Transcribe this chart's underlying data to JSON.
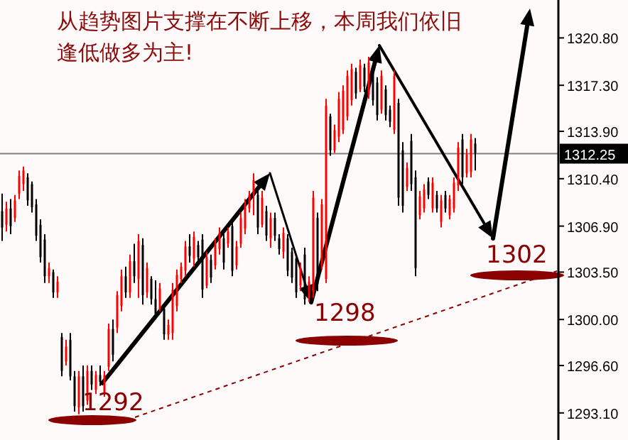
{
  "chart_data": {
    "type": "candlestick",
    "title": "从趋势图片支撑在不断上移，本周我们依旧逢低做多为主!",
    "annotations": [
      "1292",
      "1298",
      "1302"
    ],
    "categories": [
      null,
      null,
      null,
      null,
      null,
      null,
      null,
      null,
      null,
      null,
      null,
      null,
      null,
      null,
      null,
      null,
      null,
      null,
      null,
      null,
      null,
      null,
      null,
      null,
      null,
      null,
      null,
      null,
      null,
      null,
      null,
      null,
      null,
      null,
      null,
      null,
      null,
      null,
      null,
      null,
      null,
      null,
      null,
      null,
      null,
      null,
      null,
      null,
      null,
      null,
      null,
      null,
      null,
      null,
      null,
      null,
      null,
      null,
      null,
      null,
      null,
      null,
      null,
      null,
      null,
      null,
      null,
      null,
      null,
      null,
      null,
      null,
      null,
      null,
      null,
      null,
      null,
      null,
      null,
      null,
      null,
      null,
      null,
      null,
      null,
      null,
      null,
      null,
      null,
      null,
      null,
      null,
      null,
      null,
      null,
      null,
      null,
      null,
      null,
      null,
      null,
      null,
      null,
      null,
      null,
      null,
      null,
      null,
      null,
      null,
      null,
      null,
      null,
      null,
      null,
      null,
      null,
      null,
      null,
      null,
      null,
      null,
      null,
      null,
      null,
      null,
      null,
      null,
      null,
      null,
      null
    ],
    "ohlc": [
      [
        1308.0,
        1309.3,
        1305.8,
        1306.8
      ],
      [
        1307.0,
        1308.7,
        1306.5,
        1308.2
      ],
      [
        1308.2,
        1308.9,
        1306.3,
        1306.9
      ],
      [
        1307.5,
        1309.2,
        1307.2,
        1308.8
      ],
      [
        1309.3,
        1311.0,
        1308.9,
        1310.6
      ],
      [
        1310.0,
        1311.3,
        1309.5,
        1311.0
      ],
      [
        1310.5,
        1310.8,
        1308.4,
        1308.8
      ],
      [
        1310.0,
        1310.2,
        1307.9,
        1308.3
      ],
      [
        1308.5,
        1308.9,
        1305.8,
        1306.2
      ],
      [
        1307.0,
        1307.4,
        1304.2,
        1304.6
      ],
      [
        1305.9,
        1306.3,
        1302.7,
        1303.2
      ],
      [
        1303.2,
        1304.2,
        1302.7,
        1303.8
      ],
      [
        1303.5,
        1303.7,
        1301.6,
        1302.0
      ],
      [
        1302.0,
        1303.2,
        1301.6,
        1302.8
      ],
      [
        1298.7,
        1299.0,
        1295.8,
        1296.2
      ],
      [
        1296.9,
        1298.5,
        1296.6,
        1298.0
      ],
      [
        1298.5,
        1299.0,
        1295.5,
        1295.8
      ],
      [
        1295.8,
        1296.2,
        1293.2,
        1293.6
      ],
      [
        1293.5,
        1296.2,
        1293.0,
        1295.8
      ],
      [
        1295.8,
        1296.6,
        1293.2,
        1293.6
      ],
      [
        1294.0,
        1296.6,
        1293.7,
        1296.2
      ],
      [
        1296.2,
        1296.6,
        1294.8,
        1295.2
      ],
      [
        1294.8,
        1296.2,
        1294.5,
        1295.9
      ],
      [
        1295.9,
        1296.6,
        1295.1,
        1295.4
      ],
      [
        1294.6,
        1296.2,
        1294.3,
        1295.9
      ],
      [
        1296.5,
        1299.7,
        1296.2,
        1299.3
      ],
      [
        1299.3,
        1300.0,
        1296.9,
        1297.4
      ],
      [
        1299.4,
        1302.1,
        1299.0,
        1301.8
      ],
      [
        1301.0,
        1303.7,
        1300.6,
        1303.2
      ],
      [
        1303.2,
        1303.9,
        1301.6,
        1302.0
      ],
      [
        1302.0,
        1304.8,
        1301.6,
        1304.3
      ],
      [
        1304.3,
        1305.6,
        1302.7,
        1303.2
      ],
      [
        1303.0,
        1306.3,
        1301.6,
        1305.8
      ],
      [
        1305.5,
        1306.0,
        1301.1,
        1301.8
      ],
      [
        1302.0,
        1304.2,
        1301.6,
        1303.8
      ],
      [
        1303.0,
        1303.2,
        1301.1,
        1301.5
      ],
      [
        1301.5,
        1302.9,
        1300.0,
        1300.4
      ],
      [
        1300.8,
        1302.7,
        1300.6,
        1302.3
      ],
      [
        1300.8,
        1301.1,
        1298.5,
        1298.9
      ],
      [
        1298.9,
        1300.0,
        1298.5,
        1299.6
      ],
      [
        1299.0,
        1302.7,
        1298.5,
        1302.2
      ],
      [
        1301.0,
        1303.7,
        1300.6,
        1303.3
      ],
      [
        1303.0,
        1304.2,
        1302.7,
        1303.9
      ],
      [
        1303.6,
        1305.8,
        1303.2,
        1305.4
      ],
      [
        1305.4,
        1306.3,
        1304.2,
        1304.7
      ],
      [
        1304.5,
        1306.5,
        1303.9,
        1306.1
      ],
      [
        1305.5,
        1305.8,
        1304.2,
        1304.6
      ],
      [
        1305.9,
        1306.3,
        1301.6,
        1302.2
      ],
      [
        1302.5,
        1305.0,
        1302.3,
        1304.6
      ],
      [
        1304.4,
        1304.8,
        1302.7,
        1303.1
      ],
      [
        1304.0,
        1306.0,
        1303.7,
        1305.6
      ],
      [
        1305.2,
        1306.8,
        1304.8,
        1306.4
      ],
      [
        1306.0,
        1306.3,
        1303.7,
        1304.2
      ],
      [
        1305.6,
        1306.8,
        1305.3,
        1306.5
      ],
      [
        1306.9,
        1307.4,
        1303.2,
        1303.6
      ],
      [
        1304.0,
        1305.8,
        1303.7,
        1305.4
      ],
      [
        1305.6,
        1307.9,
        1305.3,
        1307.5
      ],
      [
        1306.7,
        1308.9,
        1306.3,
        1308.5
      ],
      [
        1308.2,
        1309.5,
        1307.9,
        1309.2
      ],
      [
        1309.2,
        1310.8,
        1307.7,
        1310.3
      ],
      [
        1309.2,
        1309.5,
        1306.3,
        1306.8
      ],
      [
        1307.0,
        1309.5,
        1306.8,
        1309.0
      ],
      [
        1308.0,
        1308.4,
        1305.8,
        1306.2
      ],
      [
        1306.0,
        1307.9,
        1305.3,
        1307.5
      ],
      [
        1307.5,
        1307.9,
        1305.8,
        1306.2
      ],
      [
        1306.0,
        1306.3,
        1304.8,
        1305.2
      ],
      [
        1305.0,
        1306.8,
        1304.5,
        1306.4
      ],
      [
        1306.0,
        1306.3,
        1303.2,
        1303.6
      ],
      [
        1305.0,
        1305.3,
        1302.7,
        1303.1
      ],
      [
        1304.5,
        1304.8,
        1301.6,
        1302.0
      ],
      [
        1302.5,
        1304.2,
        1302.1,
        1303.8
      ],
      [
        1304.8,
        1305.3,
        1301.1,
        1301.5
      ],
      [
        1301.6,
        1303.2,
        1301.3,
        1302.8
      ],
      [
        1302.0,
        1309.5,
        1301.6,
        1309.0
      ],
      [
        1307.5,
        1307.9,
        1302.1,
        1302.6
      ],
      [
        1304.0,
        1308.9,
        1303.7,
        1308.5
      ],
      [
        1303.0,
        1316.3,
        1302.7,
        1315.8
      ],
      [
        1315.0,
        1315.2,
        1312.1,
        1312.5
      ],
      [
        1312.5,
        1314.4,
        1312.3,
        1314.0
      ],
      [
        1313.5,
        1316.8,
        1313.1,
        1316.3
      ],
      [
        1314.0,
        1317.3,
        1313.7,
        1316.9
      ],
      [
        1315.0,
        1318.4,
        1314.7,
        1318.0
      ],
      [
        1316.2,
        1318.9,
        1315.8,
        1318.5
      ],
      [
        1318.3,
        1318.6,
        1316.3,
        1316.7
      ],
      [
        1317.0,
        1319.2,
        1316.8,
        1318.8
      ],
      [
        1318.6,
        1318.9,
        1316.8,
        1317.2
      ],
      [
        1316.6,
        1319.4,
        1316.3,
        1319.0
      ],
      [
        1318.6,
        1318.9,
        1315.8,
        1316.2
      ],
      [
        1317.5,
        1317.9,
        1314.7,
        1315.1
      ],
      [
        1315.5,
        1318.4,
        1315.2,
        1318.0
      ],
      [
        1317.0,
        1317.3,
        1314.7,
        1315.1
      ],
      [
        1315.5,
        1315.8,
        1314.2,
        1314.6
      ],
      [
        1314.0,
        1318.4,
        1313.7,
        1318.0
      ],
      [
        1316.0,
        1316.3,
        1308.4,
        1309.0
      ],
      [
        1312.5,
        1313.1,
        1307.9,
        1308.4
      ],
      [
        1309.8,
        1311.6,
        1309.5,
        1311.2
      ],
      [
        1313.2,
        1313.7,
        1309.5,
        1310.0
      ],
      [
        1310.5,
        1311.0,
        1303.2,
        1303.8
      ],
      [
        1307.7,
        1309.5,
        1307.4,
        1309.1
      ],
      [
        1308.2,
        1310.0,
        1307.9,
        1309.6
      ],
      [
        1310.2,
        1310.5,
        1308.9,
        1309.2
      ],
      [
        1308.2,
        1310.5,
        1307.9,
        1310.1
      ],
      [
        1309.2,
        1309.5,
        1307.9,
        1308.2
      ],
      [
        1307.2,
        1309.2,
        1306.8,
        1308.8
      ],
      [
        1309.2,
        1309.5,
        1307.9,
        1308.2
      ],
      [
        1307.7,
        1309.2,
        1307.4,
        1308.9
      ],
      [
        1308.2,
        1310.5,
        1307.9,
        1310.1
      ],
      [
        1309.9,
        1313.1,
        1309.5,
        1312.7
      ],
      [
        1313.3,
        1313.7,
        1310.0,
        1310.5
      ],
      [
        1310.8,
        1312.6,
        1310.5,
        1312.2
      ],
      [
        1310.9,
        1313.7,
        1310.5,
        1313.3
      ],
      [
        1313.0,
        1313.4,
        1311.0,
        1312.3
      ],
      null,
      null,
      null,
      null,
      null,
      null,
      null,
      null,
      null,
      null,
      null,
      null,
      null,
      null,
      null,
      null,
      null,
      null,
      null
    ],
    "colors": [
      "#000000",
      "#ff0000",
      "#000000",
      "#ff0000",
      "#ff0000",
      "#ff0000",
      "#000000",
      "#000000",
      "#000000",
      "#000000",
      "#000000",
      "#ff0000",
      "#000000",
      "#ff0000",
      "#000000",
      "#ff0000",
      "#000000",
      "#000000",
      "#ff0000",
      "#000000",
      "#ff0000",
      "#000000",
      "#ff0000",
      "#000000",
      "#ff0000",
      "#ff0000",
      "#000000",
      "#ff0000",
      "#ff0000",
      "#000000",
      "#ff0000",
      "#000000",
      "#ff0000",
      "#000000",
      "#ff0000",
      "#000000",
      "#000000",
      "#ff0000",
      "#000000",
      "#ff0000",
      "#ff0000",
      "#ff0000",
      "#ff0000",
      "#ff0000",
      "#000000",
      "#ff0000",
      "#000000",
      "#000000",
      "#ff0000",
      "#000000",
      "#ff0000",
      "#ff0000",
      "#000000",
      "#ff0000",
      "#000000",
      "#ff0000",
      "#ff0000",
      "#ff0000",
      "#ff0000",
      "#ff0000",
      "#000000",
      "#ff0000",
      "#000000",
      "#ff0000",
      "#000000",
      "#000000",
      "#ff0000",
      "#000000",
      "#000000",
      "#000000",
      "#ff0000",
      "#000000",
      "#ff0000",
      "#ff0000",
      "#000000",
      "#ff0000",
      "#ff0000",
      "#000000",
      "#ff0000",
      "#ff0000",
      "#ff0000",
      "#ff0000",
      "#ff0000",
      "#000000",
      "#ff0000",
      "#000000",
      "#ff0000",
      "#000000",
      "#000000",
      "#ff0000",
      "#000000",
      "#000000",
      "#ff0000",
      "#000000",
      "#000000",
      "#ff0000",
      "#000000",
      "#000000",
      "#ff0000",
      "#ff0000",
      "#000000",
      "#ff0000",
      "#000000",
      "#ff0000",
      "#000000",
      "#ff0000",
      "#ff0000",
      "#ff0000",
      "#000000",
      "#ff0000",
      "#ff0000",
      "#000000",
      null,
      null,
      null,
      null,
      null,
      null,
      null,
      null,
      null,
      null,
      null,
      null,
      null,
      null,
      null,
      null,
      null,
      null,
      null
    ],
    "ylim": [
      1291.1,
      1323.6
    ],
    "yticks": [
      {
        "value": 1293.1,
        "label": "1293.10"
      },
      {
        "value": 1296.6,
        "label": "1296.60"
      },
      {
        "value": 1300,
        "label": "1300.00"
      },
      {
        "value": 1303.5,
        "label": "1303.50"
      },
      {
        "value": 1306.9,
        "label": "1306.90"
      },
      {
        "value": 1310.4,
        "label": "1310.40"
      },
      {
        "value": 1313.9,
        "label": "1313.90"
      },
      {
        "value": 1317.3,
        "label": "1317.30"
      },
      {
        "value": 1320.8,
        "label": "1320.80"
      }
    ],
    "ref_lines": [
      {
        "axis": "y",
        "value": 1312.25,
        "label": "1312.25",
        "color": "#808080"
      }
    ],
    "grid": false
  }
}
